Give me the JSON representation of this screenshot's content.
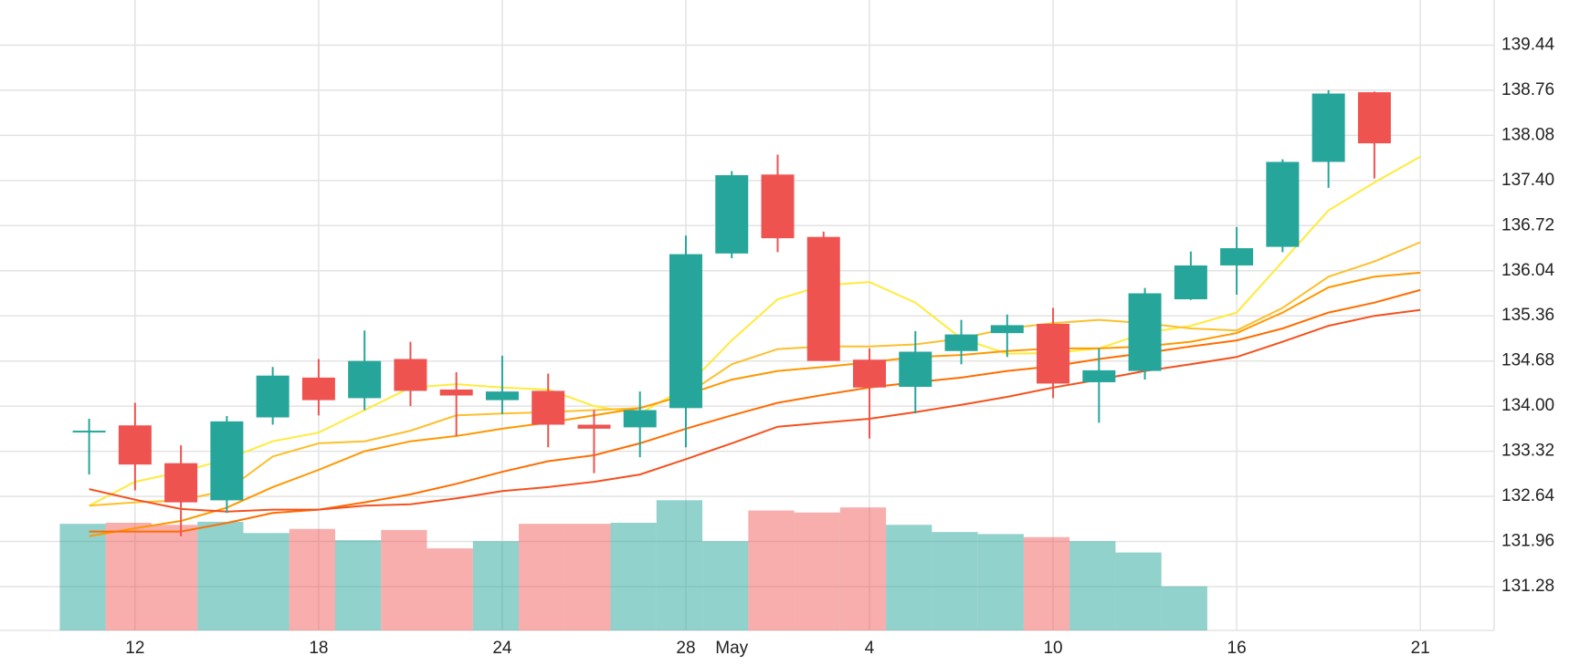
{
  "chart_data": {
    "type": "candlestick",
    "categories": [
      null,
      "12",
      null,
      null,
      null,
      "18",
      null,
      null,
      null,
      "24",
      null,
      null,
      null,
      "28",
      "May",
      null,
      null,
      "4",
      null,
      null,
      null,
      "10",
      null,
      null,
      null,
      "16",
      null,
      null,
      null,
      "21"
    ],
    "open": [
      133.62,
      133.71,
      133.14,
      132.58,
      133.83,
      134.43,
      134.12,
      134.71,
      134.25,
      134.09,
      134.23,
      133.72,
      133.68,
      133.97,
      136.3,
      137.49,
      136.55,
      134.7,
      134.29,
      134.83,
      135.1,
      135.24,
      134.36,
      134.53,
      135.61,
      136.12,
      136.4,
      137.68,
      138.73,
      null
    ],
    "high": [
      133.81,
      134.05,
      133.41,
      133.85,
      134.59,
      134.71,
      135.14,
      134.97,
      134.51,
      134.76,
      134.49,
      133.94,
      134.22,
      136.57,
      137.54,
      137.79,
      136.63,
      134.87,
      135.13,
      135.3,
      135.38,
      135.48,
      134.87,
      135.78,
      136.33,
      136.7,
      137.72,
      138.76,
      138.74,
      null
    ],
    "low": [
      132.97,
      132.73,
      132.04,
      132.39,
      133.72,
      133.86,
      133.94,
      134.0,
      133.55,
      133.88,
      133.38,
      132.99,
      133.23,
      133.38,
      136.23,
      136.32,
      134.68,
      133.51,
      133.89,
      134.63,
      134.74,
      134.12,
      133.75,
      134.4,
      135.6,
      135.68,
      136.32,
      137.29,
      137.43,
      null
    ],
    "close": [
      133.63,
      133.12,
      132.55,
      133.77,
      134.46,
      134.09,
      134.68,
      134.23,
      134.16,
      134.22,
      133.72,
      133.66,
      133.94,
      136.29,
      137.48,
      136.53,
      134.68,
      134.28,
      134.82,
      135.08,
      135.22,
      134.34,
      134.54,
      135.7,
      136.12,
      136.38,
      137.68,
      138.71,
      137.96,
      null
    ],
    "volume": [
      104,
      105,
      103,
      106,
      95,
      99,
      88,
      98,
      80,
      87,
      104,
      104,
      105,
      127,
      87,
      117,
      115,
      120,
      103,
      96,
      94,
      91,
      87,
      76,
      43,
      null,
      null,
      null,
      null,
      null
    ],
    "vlim": [
      0,
      615
    ],
    "up_color": "#26a69a",
    "down_color": "#ef5350",
    "series": [
      {
        "color": "#ffeb3b",
        "values": [
          132.5,
          132.86,
          133.01,
          133.2,
          133.47,
          133.6,
          133.94,
          134.28,
          134.33,
          134.28,
          134.25,
          134.0,
          133.89,
          134.28,
          134.99,
          135.61,
          135.82,
          135.87,
          135.56,
          135.02,
          134.79,
          134.8,
          134.87,
          135.1,
          135.21,
          135.41,
          136.18,
          136.95,
          137.37,
          137.76
        ]
      },
      {
        "color": "#fbc02d",
        "values": [
          132.5,
          132.55,
          132.58,
          132.73,
          133.24,
          133.44,
          133.47,
          133.63,
          133.86,
          133.89,
          133.91,
          133.94,
          133.97,
          134.17,
          134.63,
          134.86,
          134.9,
          134.9,
          134.93,
          135.02,
          135.17,
          135.25,
          135.3,
          135.25,
          135.17,
          135.14,
          135.48,
          135.95,
          136.18,
          136.47
        ]
      },
      {
        "color": "#ff9800",
        "values": [
          132.04,
          132.16,
          132.27,
          132.47,
          132.78,
          133.04,
          133.32,
          133.47,
          133.55,
          133.66,
          133.75,
          133.86,
          133.97,
          134.17,
          134.4,
          134.53,
          134.59,
          134.66,
          134.74,
          134.77,
          134.83,
          134.87,
          134.87,
          134.9,
          134.97,
          135.1,
          135.41,
          135.79,
          135.95,
          136.01
        ]
      },
      {
        "color": "#ff6d00",
        "values": [
          132.11,
          132.11,
          132.11,
          132.24,
          132.39,
          132.44,
          132.55,
          132.67,
          132.83,
          133.01,
          133.17,
          133.26,
          133.44,
          133.66,
          133.86,
          134.05,
          134.17,
          134.28,
          134.36,
          134.43,
          134.53,
          134.6,
          134.71,
          134.8,
          134.9,
          134.99,
          135.17,
          135.41,
          135.56,
          135.75
        ]
      },
      {
        "color": "#f4511e",
        "values": [
          132.75,
          132.59,
          132.45,
          132.41,
          132.44,
          132.44,
          132.5,
          132.52,
          132.61,
          132.72,
          132.78,
          132.86,
          132.97,
          133.2,
          133.44,
          133.69,
          133.75,
          133.81,
          133.91,
          134.02,
          134.14,
          134.28,
          134.4,
          134.53,
          134.63,
          134.74,
          134.97,
          135.21,
          135.36,
          135.45
        ]
      }
    ],
    "ylim": [
      130.62,
      140.12
    ],
    "yticks": [
      131.28,
      131.96,
      132.64,
      133.32,
      {
        "value": 134,
        "label": "134.00"
      },
      134.68,
      135.36,
      136.04,
      136.72,
      {
        "value": 137.4,
        "label": "137.40"
      },
      138.08,
      138.76,
      139.44
    ],
    "grid": true
  }
}
